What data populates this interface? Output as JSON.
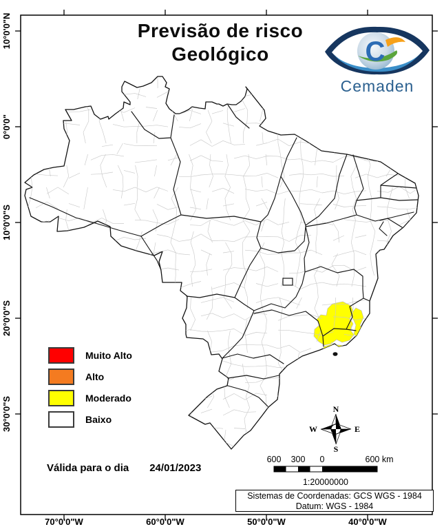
{
  "title": {
    "line1": "Previsão de risco",
    "line2": "Geológico"
  },
  "logo": {
    "wordmark": "Cemaden"
  },
  "legend": {
    "items": [
      {
        "label": "Muito Alto",
        "color": "#ff0000"
      },
      {
        "label": "Alto",
        "color": "#f47b20"
      },
      {
        "label": "Moderado",
        "color": "#ffff00"
      },
      {
        "label": "Baixo",
        "color": "#ffffff"
      }
    ]
  },
  "validity": {
    "prefix": "Válida para o dia",
    "date": "24/01/2023"
  },
  "compass": {
    "n": "N",
    "e": "E",
    "s": "S",
    "w": "W"
  },
  "scalebar": {
    "labels": [
      "600",
      "300",
      "0",
      "600 km"
    ],
    "ratio": "1:20000000"
  },
  "projection": {
    "line1": "Sistemas de Coordenadas: GCS WGS - 1984",
    "line2": "Datum: WGS - 1984"
  },
  "axes": {
    "x_labels": [
      "70°0'0\"W",
      "60°0'0\"W",
      "50°0'0\"W",
      "40°0'0\"W"
    ],
    "y_labels": [
      "10°0'0\"N",
      "0°0'0\"",
      "10°0'0\"S",
      "20°0'0\"S",
      "30°0'0\"S"
    ]
  },
  "map": {
    "highlighted_risk": "Moderado",
    "highlight_color": "#ffff00"
  }
}
